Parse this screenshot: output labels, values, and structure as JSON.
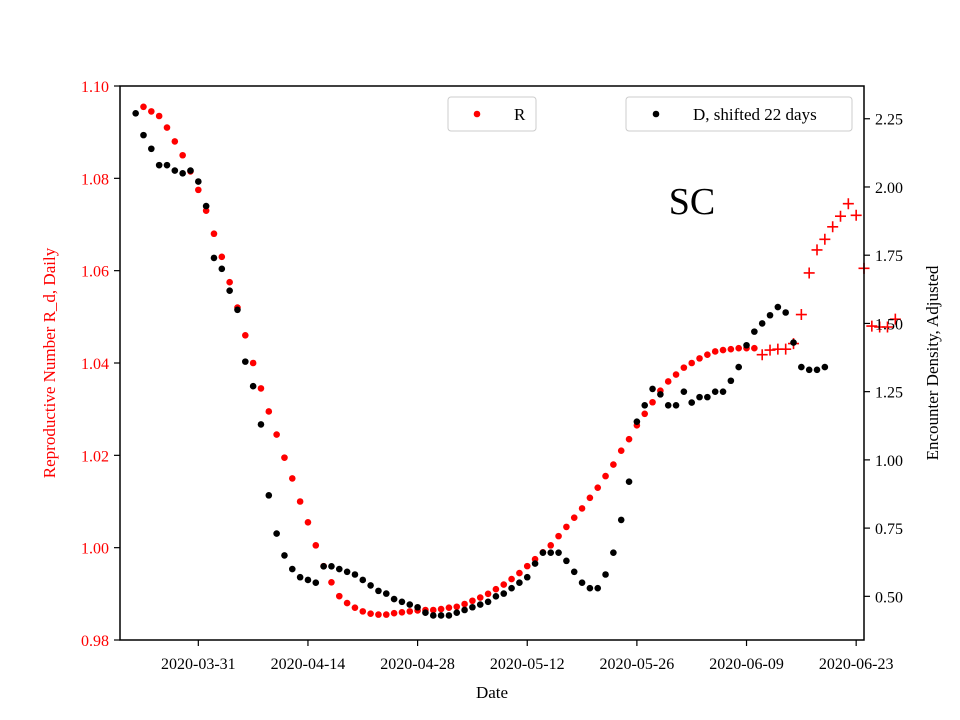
{
  "chart_data": {
    "type": "scatter",
    "annotation": "SC",
    "xlabel": "Date",
    "ylabel_left": "Reproductive Number R_d, Daily",
    "ylabel_right": "Encounter Density, Adjusted",
    "x_ticks": [
      "2020-03-31",
      "2020-04-14",
      "2020-04-28",
      "2020-05-12",
      "2020-05-26",
      "2020-06-09",
      "2020-06-23"
    ],
    "y_left_ticks": [
      "0.98",
      "1.00",
      "1.02",
      "1.04",
      "1.06",
      "1.08",
      "1.10"
    ],
    "y_right_ticks": [
      "0.50",
      "0.75",
      "1.00",
      "1.25",
      "1.50",
      "1.75",
      "2.00",
      "2.25"
    ],
    "x_range": [
      "2020-03-21",
      "2020-06-24"
    ],
    "y_left_range": [
      0.98,
      1.1
    ],
    "y_right_range": [
      0.34,
      2.37
    ],
    "grid": false,
    "legends": [
      {
        "label": "R",
        "color": "#ff0000",
        "placement": "top-center"
      },
      {
        "label": "D, shifted 22 days",
        "color": "#000000",
        "placement": "top-right"
      }
    ],
    "series": [
      {
        "name": "R",
        "axis": "left",
        "color": "#ff0000",
        "marker": "dot",
        "points": [
          [
            "2020-03-24",
            1.0955
          ],
          [
            "2020-03-25",
            1.0945
          ],
          [
            "2020-03-26",
            1.0935
          ],
          [
            "2020-03-27",
            1.091
          ],
          [
            "2020-03-28",
            1.088
          ],
          [
            "2020-03-29",
            1.085
          ],
          [
            "2020-03-30",
            1.0815
          ],
          [
            "2020-03-31",
            1.0775
          ],
          [
            "2020-04-01",
            1.073
          ],
          [
            "2020-04-02",
            1.068
          ],
          [
            "2020-04-03",
            1.063
          ],
          [
            "2020-04-04",
            1.0575
          ],
          [
            "2020-04-05",
            1.052
          ],
          [
            "2020-04-06",
            1.046
          ],
          [
            "2020-04-07",
            1.04
          ],
          [
            "2020-04-08",
            1.0345
          ],
          [
            "2020-04-09",
            1.0295
          ],
          [
            "2020-04-10",
            1.0245
          ],
          [
            "2020-04-11",
            1.0195
          ],
          [
            "2020-04-12",
            1.015
          ],
          [
            "2020-04-13",
            1.01
          ],
          [
            "2020-04-14",
            1.0055
          ],
          [
            "2020-04-15",
            1.0005
          ],
          [
            "2020-04-16",
            0.996
          ],
          [
            "2020-04-17",
            0.9925
          ],
          [
            "2020-04-18",
            0.9895
          ],
          [
            "2020-04-19",
            0.988
          ],
          [
            "2020-04-20",
            0.987
          ],
          [
            "2020-04-21",
            0.9862
          ],
          [
            "2020-04-22",
            0.9857
          ],
          [
            "2020-04-23",
            0.9855
          ],
          [
            "2020-04-24",
            0.9855
          ],
          [
            "2020-04-25",
            0.9858
          ],
          [
            "2020-04-26",
            0.986
          ],
          [
            "2020-04-27",
            0.9862
          ],
          [
            "2020-04-28",
            0.9864
          ],
          [
            "2020-04-29",
            0.9865
          ],
          [
            "2020-04-30",
            0.9865
          ],
          [
            "2020-05-01",
            0.9867
          ],
          [
            "2020-05-02",
            0.987
          ],
          [
            "2020-05-03",
            0.9872
          ],
          [
            "2020-05-04",
            0.9878
          ],
          [
            "2020-05-05",
            0.9885
          ],
          [
            "2020-05-06",
            0.9892
          ],
          [
            "2020-05-07",
            0.99
          ],
          [
            "2020-05-08",
            0.991
          ],
          [
            "2020-05-09",
            0.992
          ],
          [
            "2020-05-10",
            0.9932
          ],
          [
            "2020-05-11",
            0.9945
          ],
          [
            "2020-05-12",
            0.996
          ],
          [
            "2020-05-13",
            0.9975
          ],
          [
            "2020-05-14",
            0.999
          ],
          [
            "2020-05-15",
            1.0005
          ],
          [
            "2020-05-16",
            1.0025
          ],
          [
            "2020-05-17",
            1.0045
          ],
          [
            "2020-05-18",
            1.0065
          ],
          [
            "2020-05-19",
            1.0085
          ],
          [
            "2020-05-20",
            1.0108
          ],
          [
            "2020-05-21",
            1.013
          ],
          [
            "2020-05-22",
            1.0155
          ],
          [
            "2020-05-23",
            1.018
          ],
          [
            "2020-05-24",
            1.021
          ],
          [
            "2020-05-25",
            1.0235
          ],
          [
            "2020-05-26",
            1.0265
          ],
          [
            "2020-05-27",
            1.029
          ],
          [
            "2020-05-28",
            1.0315
          ],
          [
            "2020-05-29",
            1.034
          ],
          [
            "2020-05-30",
            1.036
          ],
          [
            "2020-05-31",
            1.0375
          ],
          [
            "2020-06-01",
            1.039
          ],
          [
            "2020-06-02",
            1.04
          ],
          [
            "2020-06-03",
            1.041
          ],
          [
            "2020-06-04",
            1.0418
          ],
          [
            "2020-06-05",
            1.0425
          ],
          [
            "2020-06-06",
            1.0428
          ],
          [
            "2020-06-07",
            1.043
          ],
          [
            "2020-06-08",
            1.0432
          ],
          [
            "2020-06-09",
            1.0432
          ],
          [
            "2020-06-10",
            1.0432
          ]
        ]
      },
      {
        "name": "R",
        "axis": "left",
        "color": "#ff0000",
        "marker": "plus",
        "points": [
          [
            "2020-06-11",
            1.0418
          ],
          [
            "2020-06-12",
            1.0428
          ],
          [
            "2020-06-13",
            1.043
          ],
          [
            "2020-06-14",
            1.043
          ],
          [
            "2020-06-15",
            1.0442
          ],
          [
            "2020-06-16",
            1.0505
          ],
          [
            "2020-06-17",
            1.0595
          ],
          [
            "2020-06-18",
            1.0645
          ],
          [
            "2020-06-19",
            1.0668
          ],
          [
            "2020-06-20",
            1.0695
          ],
          [
            "2020-06-21",
            1.0718
          ],
          [
            "2020-06-22",
            1.0745
          ],
          [
            "2020-06-23",
            1.072
          ],
          [
            "2020-06-24",
            1.0605
          ],
          [
            "2020-06-25",
            1.048
          ],
          [
            "2020-06-26",
            1.0478
          ],
          [
            "2020-06-27",
            1.0478
          ],
          [
            "2020-06-28",
            1.0495
          ]
        ]
      },
      {
        "name": "D, shifted 22 days",
        "axis": "right",
        "color": "#000000",
        "marker": "dot",
        "points": [
          [
            "2020-03-23",
            2.27
          ],
          [
            "2020-03-24",
            2.19
          ],
          [
            "2020-03-25",
            2.14
          ],
          [
            "2020-03-26",
            2.08
          ],
          [
            "2020-03-27",
            2.08
          ],
          [
            "2020-03-28",
            2.06
          ],
          [
            "2020-03-29",
            2.05
          ],
          [
            "2020-03-30",
            2.06
          ],
          [
            "2020-03-31",
            2.02
          ],
          [
            "2020-04-01",
            1.93
          ],
          [
            "2020-04-02",
            1.74
          ],
          [
            "2020-04-03",
            1.7
          ],
          [
            "2020-04-04",
            1.62
          ],
          [
            "2020-04-05",
            1.55
          ],
          [
            "2020-04-06",
            1.36
          ],
          [
            "2020-04-07",
            1.27
          ],
          [
            "2020-04-08",
            1.13
          ],
          [
            "2020-04-09",
            0.87
          ],
          [
            "2020-04-10",
            0.73
          ],
          [
            "2020-04-11",
            0.65
          ],
          [
            "2020-04-12",
            0.6
          ],
          [
            "2020-04-13",
            0.57
          ],
          [
            "2020-04-14",
            0.56
          ],
          [
            "2020-04-15",
            0.55
          ],
          [
            "2020-04-16",
            0.61
          ],
          [
            "2020-04-17",
            0.61
          ],
          [
            "2020-04-18",
            0.6
          ],
          [
            "2020-04-19",
            0.59
          ],
          [
            "2020-04-20",
            0.58
          ],
          [
            "2020-04-21",
            0.56
          ],
          [
            "2020-04-22",
            0.54
          ],
          [
            "2020-04-23",
            0.52
          ],
          [
            "2020-04-24",
            0.51
          ],
          [
            "2020-04-25",
            0.49
          ],
          [
            "2020-04-26",
            0.48
          ],
          [
            "2020-04-27",
            0.47
          ],
          [
            "2020-04-28",
            0.46
          ],
          [
            "2020-04-29",
            0.44
          ],
          [
            "2020-04-30",
            0.43
          ],
          [
            "2020-05-01",
            0.43
          ],
          [
            "2020-05-02",
            0.43
          ],
          [
            "2020-05-03",
            0.44
          ],
          [
            "2020-05-04",
            0.45
          ],
          [
            "2020-05-05",
            0.46
          ],
          [
            "2020-05-06",
            0.47
          ],
          [
            "2020-05-07",
            0.48
          ],
          [
            "2020-05-08",
            0.5
          ],
          [
            "2020-05-09",
            0.51
          ],
          [
            "2020-05-10",
            0.53
          ],
          [
            "2020-05-11",
            0.55
          ],
          [
            "2020-05-12",
            0.57
          ],
          [
            "2020-05-13",
            0.62
          ],
          [
            "2020-05-14",
            0.66
          ],
          [
            "2020-05-15",
            0.66
          ],
          [
            "2020-05-16",
            0.66
          ],
          [
            "2020-05-17",
            0.63
          ],
          [
            "2020-05-18",
            0.59
          ],
          [
            "2020-05-19",
            0.55
          ],
          [
            "2020-05-20",
            0.53
          ],
          [
            "2020-05-21",
            0.53
          ],
          [
            "2020-05-22",
            0.58
          ],
          [
            "2020-05-23",
            0.66
          ],
          [
            "2020-05-24",
            0.78
          ],
          [
            "2020-05-25",
            0.92
          ],
          [
            "2020-05-26",
            1.14
          ],
          [
            "2020-05-27",
            1.2
          ],
          [
            "2020-05-28",
            1.26
          ],
          [
            "2020-05-29",
            1.24
          ],
          [
            "2020-05-30",
            1.2
          ],
          [
            "2020-05-31",
            1.2
          ],
          [
            "2020-06-01",
            1.25
          ],
          [
            "2020-06-02",
            1.21
          ],
          [
            "2020-06-03",
            1.23
          ],
          [
            "2020-06-04",
            1.23
          ],
          [
            "2020-06-05",
            1.25
          ],
          [
            "2020-06-06",
            1.25
          ],
          [
            "2020-06-07",
            1.29
          ],
          [
            "2020-06-08",
            1.34
          ],
          [
            "2020-06-09",
            1.42
          ],
          [
            "2020-06-10",
            1.47
          ],
          [
            "2020-06-11",
            1.5
          ],
          [
            "2020-06-12",
            1.53
          ],
          [
            "2020-06-13",
            1.56
          ],
          [
            "2020-06-14",
            1.54
          ],
          [
            "2020-06-15",
            1.43
          ],
          [
            "2020-06-16",
            1.34
          ],
          [
            "2020-06-17",
            1.33
          ],
          [
            "2020-06-18",
            1.33
          ],
          [
            "2020-06-19",
            1.34
          ]
        ]
      }
    ]
  }
}
